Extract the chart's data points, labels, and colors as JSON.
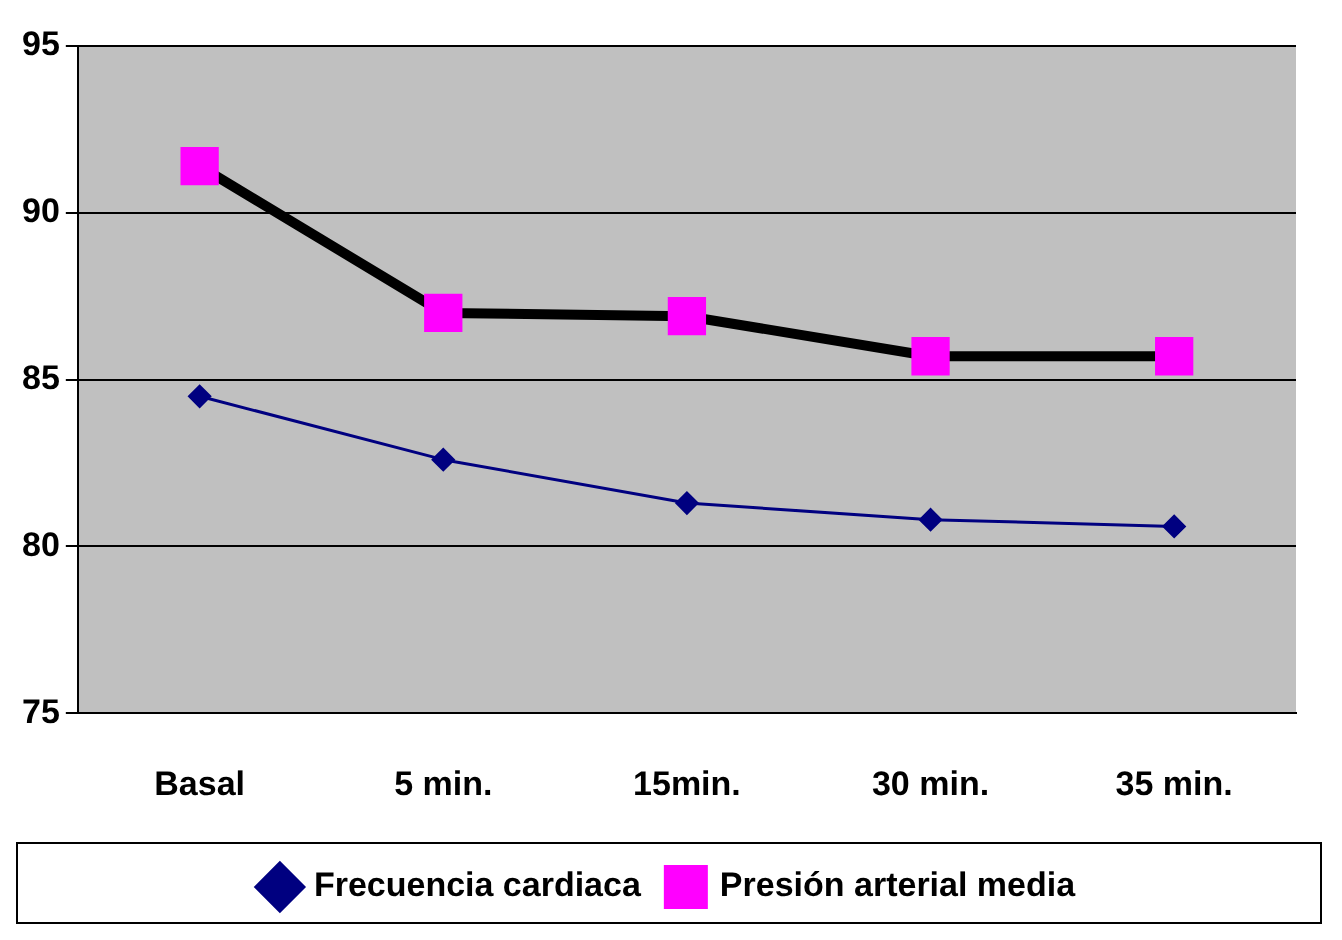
{
  "chart_data": {
    "type": "line",
    "categories": [
      "Basal",
      "5 min.",
      "15min.",
      "30 min.",
      "35 min."
    ],
    "series": [
      {
        "name": "Frecuencia cardiaca",
        "color": "#000080",
        "values": [
          84.5,
          82.6,
          81.3,
          80.8,
          80.6
        ],
        "marker": "diamond"
      },
      {
        "name": "Presión arterial media",
        "color": "#000000",
        "values": [
          91.4,
          87.0,
          86.9,
          85.7,
          85.7
        ],
        "marker": "square"
      }
    ],
    "ylim": [
      75,
      95
    ],
    "yticks": [
      75,
      80,
      85,
      90,
      95
    ],
    "grid": "y",
    "legend": "bottom"
  }
}
